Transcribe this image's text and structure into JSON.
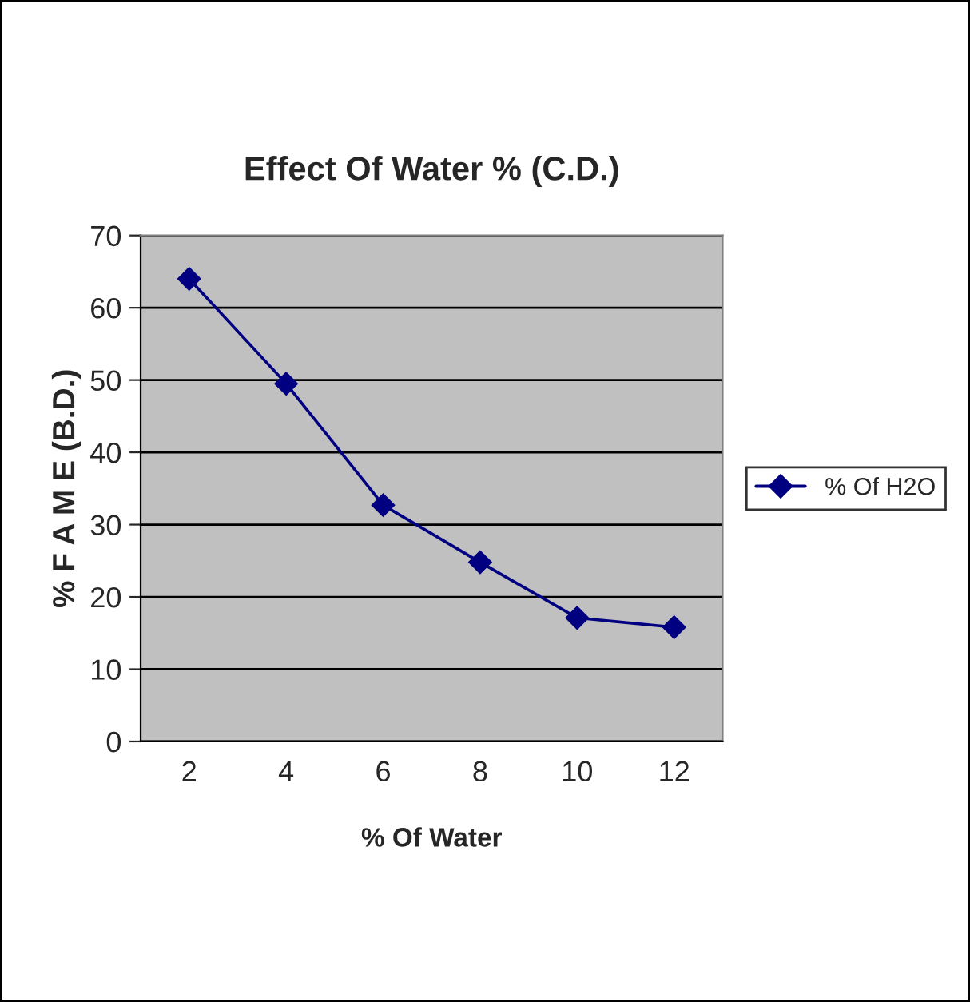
{
  "chart_data": {
    "type": "line",
    "title": "Effect Of Water % (C.D.)",
    "xlabel": "% Of Water",
    "ylabel": "% F A M E (B.D.)",
    "categories": [
      "2",
      "4",
      "6",
      "8",
      "10",
      "12"
    ],
    "series": [
      {
        "name": "% Of H2O",
        "color": "#000080",
        "values": [
          64,
          49.5,
          32.7,
          24.8,
          17.1,
          15.8
        ]
      }
    ],
    "ylim": [
      0,
      70
    ],
    "yticks": [
      0,
      10,
      20,
      30,
      40,
      50,
      60,
      70
    ],
    "grid": "y",
    "legend": "right",
    "marker": "diamond",
    "line_style": "solid"
  }
}
